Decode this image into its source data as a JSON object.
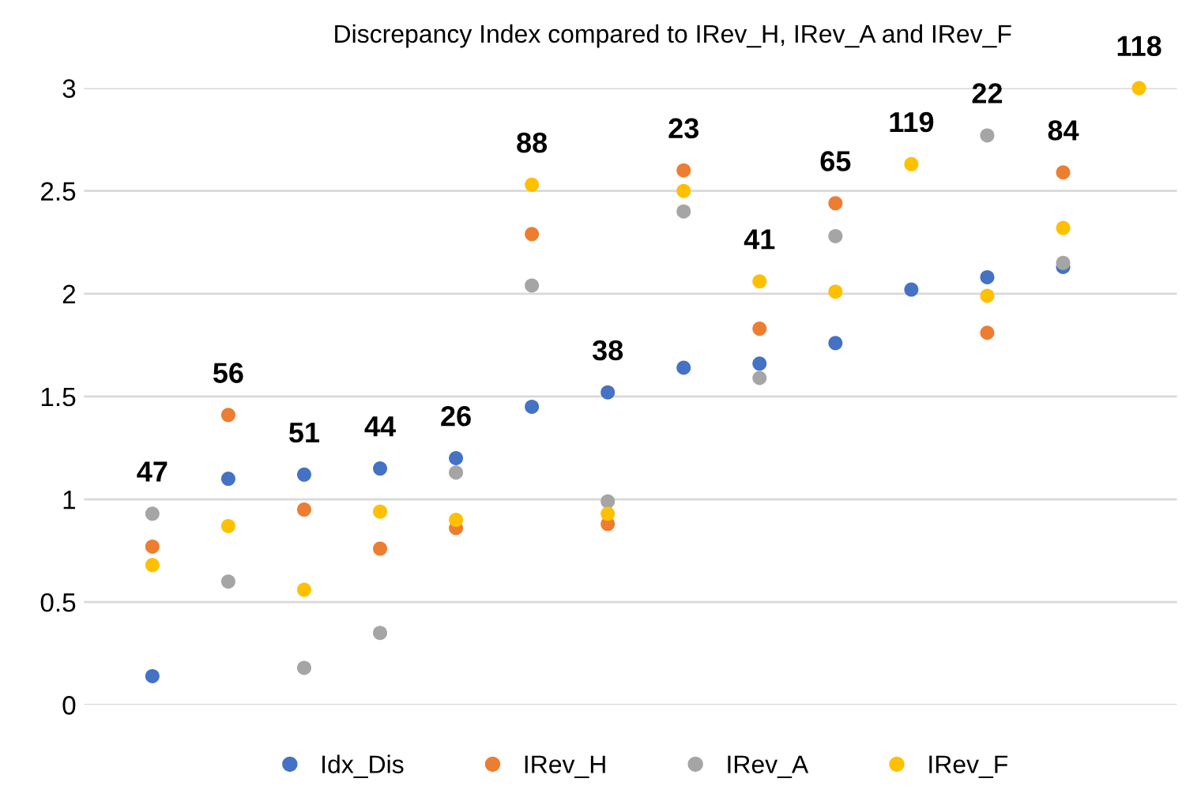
{
  "chart_data": {
    "type": "scatter",
    "title": "Discrepancy Index compared to IRev_H, IRev_A and IRev_F",
    "categories": [
      "47",
      "56",
      "51",
      "44",
      "26",
      "88",
      "38",
      "23",
      "41",
      "65",
      "119",
      "22",
      "84",
      "118"
    ],
    "series": [
      {
        "name": "Idx_Dis",
        "color": "#4472c4",
        "values": [
          0.14,
          1.1,
          1.12,
          1.15,
          1.2,
          1.45,
          1.52,
          1.64,
          1.66,
          1.76,
          2.02,
          2.08,
          2.13,
          null
        ]
      },
      {
        "name": "IRev_H",
        "color": "#ed7d31",
        "values": [
          0.77,
          1.41,
          0.95,
          0.76,
          0.86,
          2.29,
          0.88,
          2.6,
          1.83,
          2.44,
          null,
          1.81,
          2.59,
          null
        ]
      },
      {
        "name": "IRev_A",
        "color": "#a5a5a5",
        "values": [
          0.93,
          0.6,
          0.18,
          0.35,
          1.13,
          2.04,
          0.99,
          2.4,
          1.59,
          2.28,
          null,
          2.77,
          2.15,
          null
        ]
      },
      {
        "name": "IRev_F",
        "color": "#ffc000",
        "values": [
          0.68,
          0.87,
          0.56,
          0.94,
          0.9,
          2.53,
          0.93,
          2.5,
          2.06,
          2.01,
          2.63,
          1.99,
          2.32,
          3.0
        ]
      }
    ],
    "ylim": [
      0,
      3
    ],
    "yticks": [
      0,
      0.5,
      1,
      1.5,
      2,
      2.5,
      3
    ],
    "grid": "y",
    "legend": "bottom",
    "marker": "circle"
  }
}
